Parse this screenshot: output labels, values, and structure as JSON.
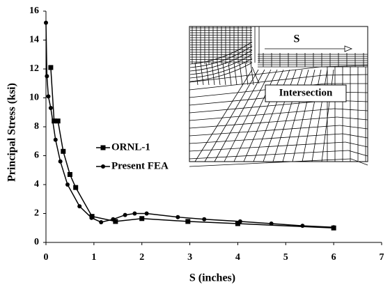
{
  "chart_data": {
    "type": "line",
    "x_label": "S (inches)",
    "y_label": "Principal Stress (ksi)",
    "xlim": [
      0,
      7
    ],
    "xticks": [
      0,
      1,
      2,
      3,
      4,
      5,
      6,
      7
    ],
    "ylim": [
      0,
      16
    ],
    "yticks": [
      0,
      2,
      4,
      6,
      8,
      10,
      12,
      14,
      16
    ],
    "series": [
      {
        "name": "ORNL-1",
        "color": "#000000",
        "marker": "square",
        "x": [
          0.1,
          0.17,
          0.25,
          0.36,
          0.5,
          0.62,
          0.96,
          1.45,
          2.0,
          2.96,
          4.0,
          6.0
        ],
        "values": [
          12.1,
          8.4,
          8.4,
          6.3,
          4.7,
          3.8,
          1.8,
          1.45,
          1.65,
          1.45,
          1.3,
          1.0
        ]
      },
      {
        "name": "Present FEA",
        "color": "#000000",
        "marker": "circle",
        "x": [
          0,
          0.02,
          0.05,
          0.1,
          0.2,
          0.3,
          0.45,
          0.7,
          0.95,
          1.15,
          1.4,
          1.65,
          1.85,
          2.1,
          2.75,
          3.3,
          4.05,
          4.7,
          5.35,
          6.0
        ],
        "values": [
          15.2,
          11.5,
          10.1,
          9.3,
          7.1,
          5.6,
          4.0,
          2.5,
          1.7,
          1.4,
          1.6,
          1.9,
          2.0,
          2.0,
          1.75,
          1.6,
          1.45,
          1.3,
          1.15,
          1.05
        ]
      }
    ],
    "inset_labels": [
      "S",
      "Intersection"
    ]
  }
}
